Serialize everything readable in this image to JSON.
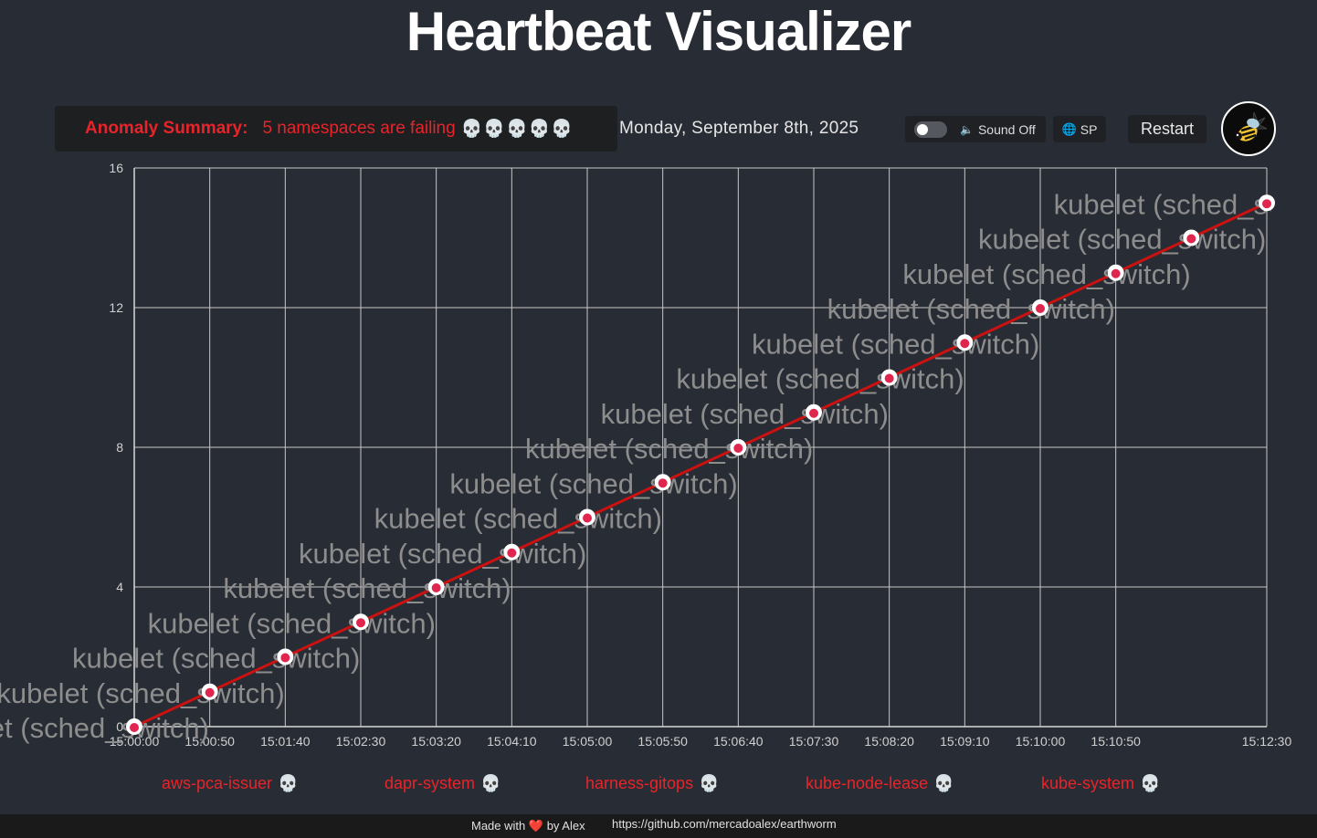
{
  "header": {
    "title": "Heartbeat Visualizer"
  },
  "anomaly": {
    "label": "Anomaly Summary:",
    "text": "5 namespaces are failing",
    "skulls": "💀💀💀💀💀"
  },
  "date": "Monday, September 8th, 2025",
  "controls": {
    "sound_label": "Sound Off",
    "sound_on": false,
    "language_label": "SP",
    "restart_label": "Restart"
  },
  "chart_data": {
    "type": "line",
    "x_ticks": [
      "15:00:00",
      "15:00:50",
      "15:01:40",
      "15:02:30",
      "15:03:20",
      "15:04:10",
      "15:05:00",
      "15:05:50",
      "15:06:40",
      "15:07:30",
      "15:08:20",
      "15:09:10",
      "15:10:00",
      "15:10:50",
      "15:12:30"
    ],
    "y_ticks": [
      "0",
      "4",
      "8",
      "12",
      "16"
    ],
    "ylim": [
      0,
      16
    ],
    "x_seconds_range": [
      0,
      750
    ],
    "series": [
      {
        "color": "#cc1111",
        "points": [
          {
            "t": "15:00:00",
            "y": 0
          },
          {
            "t": "15:00:50",
            "y": 1
          },
          {
            "t": "15:01:40",
            "y": 2
          },
          {
            "t": "15:02:30",
            "y": 3
          },
          {
            "t": "15:03:20",
            "y": 4
          },
          {
            "t": "15:04:10",
            "y": 5
          },
          {
            "t": "15:05:00",
            "y": 6
          },
          {
            "t": "15:05:50",
            "y": 7
          },
          {
            "t": "15:06:40",
            "y": 8
          },
          {
            "t": "15:07:30",
            "y": 9
          },
          {
            "t": "15:08:20",
            "y": 10
          },
          {
            "t": "15:09:10",
            "y": 11
          },
          {
            "t": "15:10:00",
            "y": 12
          },
          {
            "t": "15:10:50",
            "y": 13
          },
          {
            "t": "15:11:40",
            "y": 14
          },
          {
            "t": "15:12:30",
            "y": 15
          }
        ]
      }
    ],
    "point_label": "kubelet (sched_switch)",
    "grid": true
  },
  "namespaces": [
    {
      "name": "aws-pca-issuer",
      "icon": "💀"
    },
    {
      "name": "dapr-system",
      "icon": "💀"
    },
    {
      "name": "harness-gitops",
      "icon": "💀"
    },
    {
      "name": "kube-node-lease",
      "icon": "💀"
    },
    {
      "name": "kube-system",
      "icon": "💀"
    }
  ],
  "footer": {
    "made_prefix": "Made with",
    "heart": "❤️",
    "made_suffix": "by Alex",
    "link": "https://github.com/mercadoalex/earthworm"
  }
}
